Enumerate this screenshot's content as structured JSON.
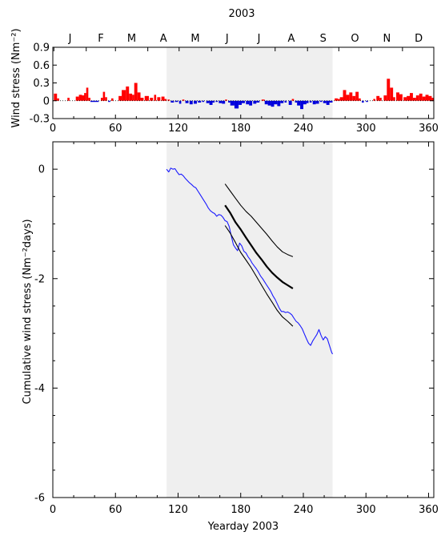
{
  "title": "2003",
  "month_labels": [
    "J",
    "F",
    "M",
    "A",
    "M",
    "J",
    "J",
    "A",
    "S",
    "O",
    "N",
    "D"
  ],
  "month_start_days": [
    1,
    32,
    60,
    91,
    121,
    152,
    182,
    213,
    244,
    274,
    305,
    335
  ],
  "colors": {
    "shade": "#efefef",
    "positive": "#ff0000",
    "negative": "#0000dd",
    "cumulative": "#1a1aff",
    "fit": "#000000"
  },
  "chart_data": [
    {
      "type": "bar",
      "panel": "top",
      "ylabel": "Wind stress (Nm⁻²)",
      "xlim": [
        0,
        365
      ],
      "ylim": [
        -0.3,
        0.9
      ],
      "xticks": [
        0,
        60,
        120,
        180,
        240,
        300,
        360
      ],
      "yticks": [
        -0.3,
        0,
        0.3,
        0.6,
        0.9
      ],
      "ytick_labels": [
        "-0.3",
        "0",
        "0.3",
        "0.6",
        "0.9"
      ],
      "shaded_range": [
        109,
        268
      ],
      "events": [
        {
          "x": 1,
          "w": 3,
          "y": 0.12
        },
        {
          "x": 4,
          "w": 2,
          "y": 0.04
        },
        {
          "x": 14,
          "w": 2,
          "y": 0.05
        },
        {
          "x": 22,
          "w": 3,
          "y": 0.07
        },
        {
          "x": 25,
          "w": 3,
          "y": 0.1
        },
        {
          "x": 28,
          "w": 3,
          "y": 0.09
        },
        {
          "x": 30,
          "w": 2,
          "y": 0.13
        },
        {
          "x": 32,
          "w": 2,
          "y": 0.22
        },
        {
          "x": 34,
          "w": 2,
          "y": 0.05
        },
        {
          "x": 36,
          "w": 8,
          "y": -0.02
        },
        {
          "x": 46,
          "w": 2,
          "y": 0.05
        },
        {
          "x": 48,
          "w": 2,
          "y": 0.15
        },
        {
          "x": 50,
          "w": 2,
          "y": 0.06
        },
        {
          "x": 53,
          "w": 2,
          "y": -0.02
        },
        {
          "x": 56,
          "w": 2,
          "y": 0.04
        },
        {
          "x": 63,
          "w": 3,
          "y": 0.08
        },
        {
          "x": 66,
          "w": 4,
          "y": 0.18
        },
        {
          "x": 70,
          "w": 3,
          "y": 0.24
        },
        {
          "x": 73,
          "w": 3,
          "y": 0.12
        },
        {
          "x": 76,
          "w": 2,
          "y": 0.1
        },
        {
          "x": 78,
          "w": 3,
          "y": 0.3
        },
        {
          "x": 81,
          "w": 3,
          "y": 0.14
        },
        {
          "x": 84,
          "w": 3,
          "y": 0.05
        },
        {
          "x": 88,
          "w": 4,
          "y": 0.08
        },
        {
          "x": 93,
          "w": 3,
          "y": 0.05
        },
        {
          "x": 97,
          "w": 2,
          "y": 0.1
        },
        {
          "x": 100,
          "w": 3,
          "y": 0.06
        },
        {
          "x": 104,
          "w": 3,
          "y": 0.07
        },
        {
          "x": 107,
          "w": 2,
          "y": 0.03
        },
        {
          "x": 110,
          "w": 2,
          "y": 0.02
        },
        {
          "x": 113,
          "w": 3,
          "y": -0.03
        },
        {
          "x": 117,
          "w": 3,
          "y": -0.02
        },
        {
          "x": 121,
          "w": 2,
          "y": -0.05
        },
        {
          "x": 124,
          "w": 2,
          "y": 0.02
        },
        {
          "x": 127,
          "w": 3,
          "y": -0.04
        },
        {
          "x": 131,
          "w": 3,
          "y": -0.06
        },
        {
          "x": 135,
          "w": 3,
          "y": -0.05
        },
        {
          "x": 139,
          "w": 3,
          "y": -0.03
        },
        {
          "x": 143,
          "w": 2,
          "y": -0.02
        },
        {
          "x": 147,
          "w": 3,
          "y": -0.04
        },
        {
          "x": 150,
          "w": 3,
          "y": -0.07
        },
        {
          "x": 153,
          "w": 2,
          "y": -0.03
        },
        {
          "x": 156,
          "w": 2,
          "y": -0.02
        },
        {
          "x": 159,
          "w": 3,
          "y": -0.04
        },
        {
          "x": 162,
          "w": 3,
          "y": -0.05
        },
        {
          "x": 165,
          "w": 2,
          "y": 0.02
        },
        {
          "x": 168,
          "w": 2,
          "y": -0.03
        },
        {
          "x": 170,
          "w": 4,
          "y": -0.08
        },
        {
          "x": 174,
          "w": 4,
          "y": -0.13
        },
        {
          "x": 178,
          "w": 3,
          "y": -0.07
        },
        {
          "x": 181,
          "w": 3,
          "y": -0.04
        },
        {
          "x": 185,
          "w": 3,
          "y": -0.06
        },
        {
          "x": 188,
          "w": 3,
          "y": -0.08
        },
        {
          "x": 192,
          "w": 3,
          "y": -0.05
        },
        {
          "x": 195,
          "w": 3,
          "y": -0.03
        },
        {
          "x": 200,
          "w": 3,
          "y": 0.02
        },
        {
          "x": 203,
          "w": 3,
          "y": -0.06
        },
        {
          "x": 206,
          "w": 3,
          "y": -0.08
        },
        {
          "x": 209,
          "w": 3,
          "y": -0.1
        },
        {
          "x": 212,
          "w": 3,
          "y": -0.06
        },
        {
          "x": 215,
          "w": 3,
          "y": -0.09
        },
        {
          "x": 218,
          "w": 3,
          "y": -0.04
        },
        {
          "x": 222,
          "w": 2,
          "y": -0.03
        },
        {
          "x": 226,
          "w": 3,
          "y": -0.07
        },
        {
          "x": 229,
          "w": 2,
          "y": 0.03
        },
        {
          "x": 232,
          "w": 2,
          "y": -0.03
        },
        {
          "x": 234,
          "w": 3,
          "y": -0.08
        },
        {
          "x": 237,
          "w": 3,
          "y": -0.14
        },
        {
          "x": 240,
          "w": 3,
          "y": -0.06
        },
        {
          "x": 243,
          "w": 2,
          "y": -0.04
        },
        {
          "x": 246,
          "w": 2,
          "y": -0.03
        },
        {
          "x": 249,
          "w": 3,
          "y": -0.06
        },
        {
          "x": 252,
          "w": 3,
          "y": -0.05
        },
        {
          "x": 256,
          "w": 2,
          "y": -0.02
        },
        {
          "x": 259,
          "w": 3,
          "y": -0.04
        },
        {
          "x": 262,
          "w": 3,
          "y": -0.07
        },
        {
          "x": 265,
          "w": 3,
          "y": -0.03
        },
        {
          "x": 270,
          "w": 3,
          "y": 0.04
        },
        {
          "x": 273,
          "w": 2,
          "y": 0.03
        },
        {
          "x": 275,
          "w": 3,
          "y": 0.06
        },
        {
          "x": 278,
          "w": 3,
          "y": 0.18
        },
        {
          "x": 281,
          "w": 3,
          "y": 0.1
        },
        {
          "x": 284,
          "w": 3,
          "y": 0.14
        },
        {
          "x": 287,
          "w": 3,
          "y": 0.08
        },
        {
          "x": 290,
          "w": 3,
          "y": 0.15
        },
        {
          "x": 293,
          "w": 2,
          "y": 0.04
        },
        {
          "x": 296,
          "w": 2,
          "y": -0.03
        },
        {
          "x": 300,
          "w": 2,
          "y": -0.02
        },
        {
          "x": 307,
          "w": 2,
          "y": 0.03
        },
        {
          "x": 310,
          "w": 3,
          "y": 0.08
        },
        {
          "x": 313,
          "w": 2,
          "y": 0.05
        },
        {
          "x": 317,
          "w": 3,
          "y": 0.09
        },
        {
          "x": 320,
          "w": 3,
          "y": 0.37
        },
        {
          "x": 323,
          "w": 3,
          "y": 0.22
        },
        {
          "x": 326,
          "w": 2,
          "y": 0.06
        },
        {
          "x": 329,
          "w": 3,
          "y": 0.14
        },
        {
          "x": 332,
          "w": 3,
          "y": 0.11
        },
        {
          "x": 336,
          "w": 3,
          "y": 0.06
        },
        {
          "x": 339,
          "w": 3,
          "y": 0.08
        },
        {
          "x": 342,
          "w": 3,
          "y": 0.13
        },
        {
          "x": 345,
          "w": 3,
          "y": 0.05
        },
        {
          "x": 348,
          "w": 3,
          "y": 0.09
        },
        {
          "x": 351,
          "w": 3,
          "y": 0.12
        },
        {
          "x": 354,
          "w": 3,
          "y": 0.07
        },
        {
          "x": 357,
          "w": 3,
          "y": 0.1
        },
        {
          "x": 360,
          "w": 3,
          "y": 0.08
        },
        {
          "x": 363,
          "w": 2,
          "y": 0.05
        }
      ]
    },
    {
      "type": "line",
      "panel": "bottom",
      "xlabel": "Yearday 2003",
      "ylabel": "Cumulative wind stress (Nm⁻²days)",
      "xlim": [
        0,
        365
      ],
      "ylim": [
        -6,
        0.5
      ],
      "xticks": [
        0,
        60,
        120,
        180,
        240,
        300,
        360
      ],
      "yticks": [
        0,
        -2,
        -4,
        -6
      ],
      "ytick_labels": [
        "0",
        "-2",
        "-4",
        "-6"
      ],
      "shaded_range": [
        109,
        268
      ],
      "series": [
        {
          "role": "cumulative",
          "x": [
            109,
            111,
            113,
            115,
            117,
            119,
            121,
            123,
            125,
            127,
            129,
            131,
            133,
            135,
            137,
            139,
            141,
            143,
            145,
            147,
            149,
            151,
            153,
            155,
            157,
            159,
            161,
            163,
            165,
            167,
            169,
            171,
            173,
            175,
            177,
            179,
            181,
            183,
            185,
            187,
            189,
            191,
            193,
            195,
            197,
            199,
            201,
            203,
            205,
            207,
            209,
            211,
            213,
            215,
            217,
            219,
            221,
            223,
            225,
            227,
            229,
            231,
            233,
            235,
            237,
            239,
            241,
            243,
            245,
            247,
            249,
            251,
            253,
            255,
            257,
            259,
            261,
            263,
            265,
            267,
            268
          ],
          "y": [
            0.0,
            -0.05,
            0.02,
            0.0,
            0.01,
            -0.05,
            -0.1,
            -0.09,
            -0.12,
            -0.17,
            -0.21,
            -0.25,
            -0.28,
            -0.32,
            -0.34,
            -0.4,
            -0.46,
            -0.52,
            -0.58,
            -0.64,
            -0.71,
            -0.76,
            -0.79,
            -0.81,
            -0.86,
            -0.83,
            -0.84,
            -0.88,
            -0.94,
            -0.96,
            -1.05,
            -1.22,
            -1.38,
            -1.44,
            -1.49,
            -1.35,
            -1.4,
            -1.5,
            -1.53,
            -1.6,
            -1.65,
            -1.72,
            -1.77,
            -1.82,
            -1.88,
            -1.95,
            -2.0,
            -2.06,
            -2.12,
            -2.18,
            -2.24,
            -2.32,
            -2.38,
            -2.46,
            -2.54,
            -2.6,
            -2.6,
            -2.62,
            -2.61,
            -2.63,
            -2.66,
            -2.72,
            -2.78,
            -2.81,
            -2.86,
            -2.92,
            -3.01,
            -3.1,
            -3.18,
            -3.22,
            -3.14,
            -3.08,
            -3.02,
            -2.93,
            -3.04,
            -3.12,
            -3.06,
            -3.1,
            -3.22,
            -3.34,
            -3.38
          ]
        },
        {
          "role": "fit",
          "x": [
            165,
            170,
            175,
            180,
            185,
            190,
            195,
            200,
            205,
            210,
            215,
            220,
            225,
            230
          ],
          "y": [
            -0.66,
            -0.8,
            -0.97,
            -1.1,
            -1.25,
            -1.39,
            -1.53,
            -1.65,
            -1.78,
            -1.89,
            -1.98,
            -2.06,
            -2.12,
            -2.18
          ]
        },
        {
          "role": "upper-bound",
          "x": [
            165,
            170,
            175,
            180,
            185,
            190,
            195,
            200,
            205,
            210,
            215,
            220,
            225,
            230
          ],
          "y": [
            -0.27,
            -0.4,
            -0.53,
            -0.66,
            -0.77,
            -0.86,
            -0.97,
            -1.08,
            -1.19,
            -1.31,
            -1.42,
            -1.51,
            -1.56,
            -1.6
          ]
        },
        {
          "role": "lower-bound",
          "x": [
            165,
            170,
            175,
            180,
            185,
            190,
            195,
            200,
            205,
            210,
            215,
            220,
            225,
            230
          ],
          "y": [
            -1.03,
            -1.17,
            -1.34,
            -1.52,
            -1.66,
            -1.8,
            -1.96,
            -2.12,
            -2.28,
            -2.43,
            -2.58,
            -2.7,
            -2.78,
            -2.87
          ]
        }
      ]
    }
  ]
}
